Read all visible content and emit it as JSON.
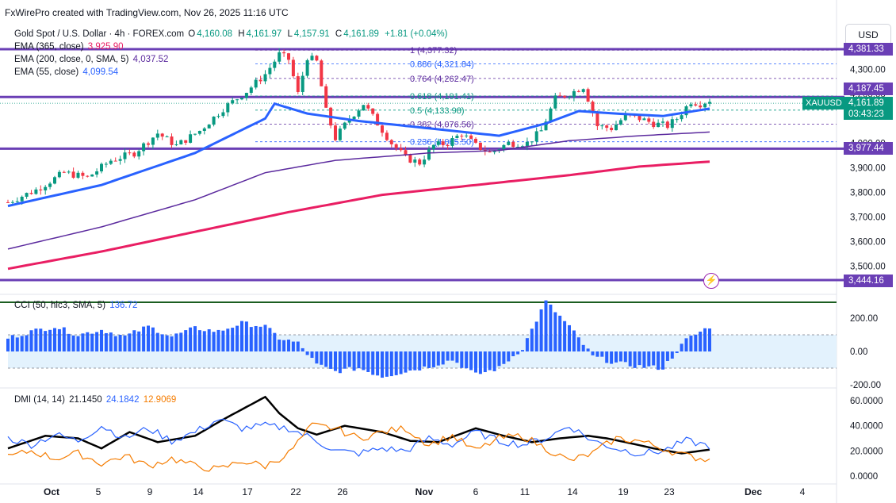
{
  "header": {
    "attribution": "FxWirePro created with TradingView.com, Nov 26, 2025 11:16 UTC",
    "symbol_title": "Gold Spot / U.S. Dollar · 4h · FOREX.com",
    "ohlc": {
      "o_label": "O",
      "o": "4,160.08",
      "h_label": "H",
      "h": "4,161.97",
      "l_label": "L",
      "l": "4,157.91",
      "c_label": "C",
      "c": "4,161.89",
      "change": "+1.81 (+0.04%)"
    },
    "currency_button": "USD"
  },
  "indicators": {
    "ema1": {
      "label": "EMA (365, close)",
      "value": "3,925.90",
      "color": "#e91e63"
    },
    "ema2": {
      "label": "EMA (200, close, 0, SMA, 5)",
      "value": "4,037.52",
      "color": "#5b2a9e"
    },
    "ema3": {
      "label": "EMA (55, close)",
      "value": "4,099.54",
      "color": "#2962ff"
    },
    "cci": {
      "label": "CCI (50, hlc3, SMA, 5)",
      "value": "136.72",
      "color": "#2962ff"
    },
    "dmi": {
      "label": "DMI (14, 14)",
      "adx": "21.1450",
      "plus_di": "24.1842",
      "minus_di": "12.9069"
    }
  },
  "badges": {
    "symbol": "XAUUSD",
    "last_price": "4,161.89",
    "countdown": "03:43:23",
    "level_top": "4,381.33",
    "level_upper": "4,187.45",
    "level_mid": "3,977.44",
    "level_low": "3,444.16"
  },
  "colors": {
    "up_candle": "#089981",
    "down_candle": "#f23645",
    "ema55": "#2962ff",
    "ema200": "#5b2a9e",
    "ema365": "#e91e63",
    "level_line": "#6a3fb5",
    "cci_bars": "#2962ff",
    "cci_band": "#e3f2fd",
    "adx": "#000000",
    "plus_di": "#2962ff",
    "minus_di": "#f57c00",
    "fib": "#2962ff"
  },
  "chart_data": [
    {
      "type": "candlestick",
      "title": "Gold Spot / U.S. Dollar · 4h · FOREX.com",
      "x_ticks": [
        "Oct",
        "5",
        "9",
        "14",
        "17",
        "22",
        "26",
        "Nov",
        "6",
        "11",
        "14",
        "19",
        "23",
        "Dec",
        "4"
      ],
      "y_ticks": [
        "4,300.00",
        "4,200.00",
        "4,000.00",
        "3,900.00",
        "3,800.00",
        "3,700.00",
        "3,600.00",
        "3,500.00"
      ],
      "ylim": [
        3420,
        4410
      ],
      "close_path": [
        [
          0,
          3760
        ],
        [
          6,
          3810
        ],
        [
          12,
          3880
        ],
        [
          17,
          3860
        ],
        [
          22,
          3930
        ],
        [
          27,
          3960
        ],
        [
          32,
          4040
        ],
        [
          36,
          3990
        ],
        [
          41,
          4050
        ],
        [
          46,
          4140
        ],
        [
          51,
          4210
        ],
        [
          55,
          4280
        ],
        [
          58,
          4360
        ],
        [
          60,
          4340
        ],
        [
          62,
          4200
        ],
        [
          64,
          4350
        ],
        [
          66,
          4330
        ],
        [
          68,
          4130
        ],
        [
          70,
          4020
        ],
        [
          73,
          4100
        ],
        [
          76,
          4160
        ],
        [
          79,
          4080
        ],
        [
          82,
          4000
        ],
        [
          85,
          3940
        ],
        [
          88,
          3920
        ],
        [
          91,
          3990
        ],
        [
          94,
          4000
        ],
        [
          97,
          4040
        ],
        [
          100,
          3990
        ],
        [
          103,
          3960
        ],
        [
          107,
          4000
        ],
        [
          111,
          4000
        ],
        [
          114,
          4050
        ],
        [
          117,
          4180
        ],
        [
          120,
          4200
        ],
        [
          123,
          4230
        ],
        [
          124,
          4180
        ],
        [
          126,
          4070
        ],
        [
          129,
          4060
        ],
        [
          132,
          4110
        ],
        [
          135,
          4100
        ],
        [
          138,
          4080
        ],
        [
          141,
          4070
        ],
        [
          143,
          4100
        ],
        [
          146,
          4170
        ],
        [
          148,
          4160
        ],
        [
          150,
          4175
        ]
      ],
      "fib_levels": [
        {
          "ratio": "1",
          "label": "1 (4,377.32)",
          "value": 4377.32
        },
        {
          "ratio": "0.886",
          "label": "0.886 (4,321.84)",
          "value": 4321.84
        },
        {
          "ratio": "0.764",
          "label": "0.764 (4,262.47)",
          "value": 4262.47
        },
        {
          "ratio": "0.618",
          "label": "0.618 (4,191.41)",
          "value": 4191.41
        },
        {
          "ratio": "0.5",
          "label": "0.5 (4,133.98)",
          "value": 4133.98
        },
        {
          "ratio": "0.382",
          "label": "0.382 (4,076.56)",
          "value": 4076.56
        },
        {
          "ratio": "0.236",
          "label": "0.236 (4,005.50)",
          "value": 4005.5
        }
      ],
      "horizontal_levels": [
        4381.33,
        4187.45,
        3977.44,
        3444.16
      ],
      "ema55": [
        [
          0,
          3745
        ],
        [
          20,
          3830
        ],
        [
          40,
          3960
        ],
        [
          55,
          4100
        ],
        [
          57,
          4160
        ],
        [
          64,
          4120
        ],
        [
          75,
          4090
        ],
        [
          90,
          4060
        ],
        [
          105,
          4030
        ],
        [
          115,
          4080
        ],
        [
          122,
          4130
        ],
        [
          130,
          4120
        ],
        [
          140,
          4110
        ],
        [
          150,
          4140
        ]
      ],
      "ema200": [
        [
          0,
          3570
        ],
        [
          20,
          3660
        ],
        [
          40,
          3770
        ],
        [
          55,
          3880
        ],
        [
          70,
          3930
        ],
        [
          90,
          3960
        ],
        [
          105,
          3970
        ],
        [
          120,
          4010
        ],
        [
          135,
          4030
        ],
        [
          150,
          4045
        ]
      ],
      "ema365": [
        [
          0,
          3490
        ],
        [
          20,
          3560
        ],
        [
          40,
          3640
        ],
        [
          60,
          3720
        ],
        [
          80,
          3790
        ],
        [
          100,
          3830
        ],
        [
          120,
          3870
        ],
        [
          135,
          3905
        ],
        [
          150,
          3925
        ]
      ]
    },
    {
      "type": "bar",
      "title": "CCI (50, hlc3, SMA, 5)",
      "y_ticks": [
        "200.00",
        "0.00",
        "-200.00"
      ],
      "ylim": [
        -200,
        300
      ],
      "band": [
        -100,
        100
      ],
      "x": [
        0,
        5,
        10,
        15,
        20,
        25,
        30,
        35,
        40,
        45,
        50,
        55,
        58,
        62,
        66,
        70,
        75,
        80,
        85,
        90,
        95,
        100,
        105,
        110,
        115,
        120,
        125,
        130,
        135,
        140,
        145,
        150
      ],
      "values": [
        80,
        120,
        150,
        100,
        130,
        90,
        150,
        90,
        140,
        120,
        170,
        150,
        80,
        50,
        -80,
        -120,
        -100,
        -150,
        -120,
        -90,
        -50,
        -140,
        -100,
        20,
        300,
        150,
        -30,
        -70,
        -90,
        -100,
        70,
        150
      ]
    },
    {
      "type": "line",
      "title": "DMI (14, 14)",
      "y_ticks": [
        "60.0000",
        "40.0000",
        "20.0000",
        "0.0000"
      ],
      "ylim": [
        -5,
        65
      ],
      "series": [
        {
          "name": "ADX",
          "x": [
            0,
            8,
            15,
            20,
            26,
            32,
            40,
            46,
            52,
            55,
            58,
            62,
            66,
            72,
            80,
            86,
            92,
            100,
            106,
            112,
            118,
            124,
            128,
            132,
            138,
            144,
            148,
            150
          ],
          "values": [
            22,
            32,
            30,
            22,
            35,
            27,
            32,
            45,
            57,
            63,
            50,
            38,
            33,
            40,
            35,
            28,
            27,
            38,
            32,
            27,
            30,
            32,
            30,
            27,
            22,
            18,
            20,
            21
          ]
        },
        {
          "name": "+DI",
          "x": [
            0,
            5,
            10,
            15,
            20,
            25,
            30,
            35,
            40,
            45,
            50,
            55,
            60,
            65,
            70,
            75,
            80,
            85,
            90,
            95,
            100,
            105,
            110,
            115,
            120,
            125,
            130,
            135,
            140,
            145,
            150
          ],
          "values": [
            30,
            25,
            33,
            28,
            40,
            30,
            38,
            28,
            35,
            45,
            38,
            40,
            38,
            30,
            20,
            18,
            22,
            20,
            30,
            25,
            35,
            28,
            25,
            30,
            40,
            28,
            22,
            18,
            20,
            28,
            24
          ]
        },
        {
          "name": "-DI",
          "x": [
            0,
            5,
            10,
            15,
            20,
            25,
            30,
            35,
            40,
            45,
            50,
            55,
            60,
            65,
            70,
            75,
            80,
            85,
            90,
            95,
            100,
            105,
            110,
            115,
            120,
            125,
            130,
            135,
            140,
            145,
            150
          ],
          "values": [
            15,
            20,
            14,
            18,
            10,
            16,
            8,
            14,
            8,
            5,
            12,
            8,
            18,
            40,
            38,
            30,
            35,
            38,
            25,
            32,
            20,
            30,
            32,
            22,
            12,
            18,
            30,
            28,
            22,
            16,
            13
          ]
        }
      ]
    }
  ],
  "x_axis_labels": [
    {
      "text": "Oct",
      "bold": true
    },
    {
      "text": "5"
    },
    {
      "text": "9"
    },
    {
      "text": "14"
    },
    {
      "text": "17"
    },
    {
      "text": "22"
    },
    {
      "text": "26"
    },
    {
      "text": "Nov",
      "bold": true
    },
    {
      "text": "6"
    },
    {
      "text": "11"
    },
    {
      "text": "14"
    },
    {
      "text": "19"
    },
    {
      "text": "23"
    },
    {
      "text": "Dec",
      "bold": true
    },
    {
      "text": "4"
    }
  ]
}
